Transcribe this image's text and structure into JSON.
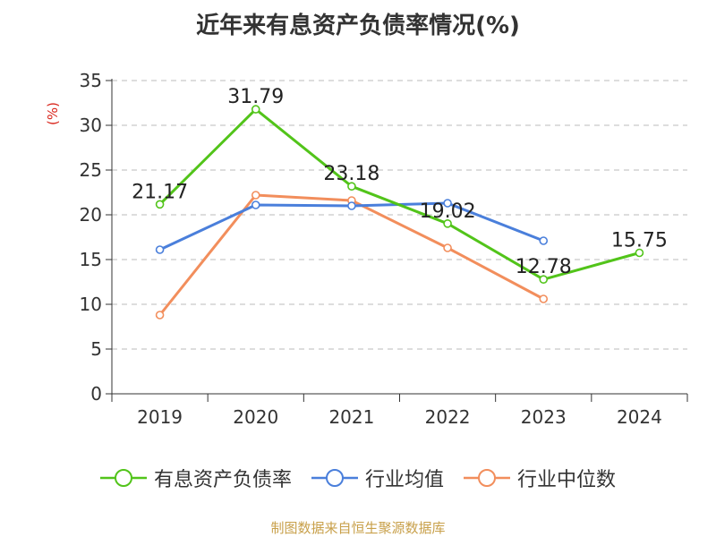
{
  "title": "近年来有息资产负债率情况(%)",
  "ylabel": "(%)",
  "source": "制图数据来自恒生聚源数据库",
  "chart_data": {
    "type": "line",
    "title": "近年来有息资产负债率情况(%)",
    "xlabel": "",
    "ylabel": "(%)",
    "categories": [
      "2019",
      "2020",
      "2021",
      "2022",
      "2023",
      "2024"
    ],
    "ylim": [
      0,
      35
    ],
    "yticks": [
      0,
      5,
      10,
      15,
      20,
      25,
      30,
      35
    ],
    "grid": true,
    "legend_position": "bottom",
    "series": [
      {
        "name": "有息资产负债率",
        "color": "#52c41a",
        "values": [
          21.17,
          31.79,
          23.18,
          19.02,
          12.78,
          15.75
        ],
        "labels": [
          "21.17",
          "31.79",
          "23.18",
          "19.02",
          "12.78",
          "15.75"
        ]
      },
      {
        "name": "行业均值",
        "color": "#4a7fdb",
        "values": [
          16.1,
          21.1,
          21.0,
          21.3,
          17.1,
          null
        ]
      },
      {
        "name": "行业中位数",
        "color": "#f28e5c",
        "values": [
          8.8,
          22.2,
          21.6,
          16.3,
          10.6,
          null
        ]
      }
    ]
  }
}
